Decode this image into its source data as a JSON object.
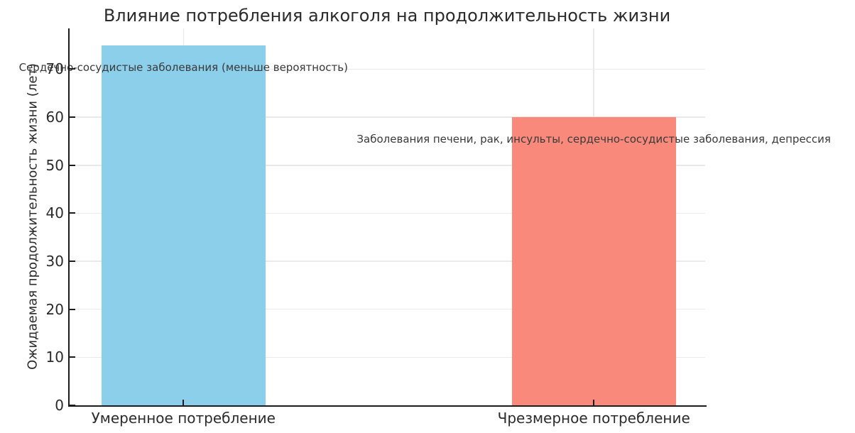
{
  "chart_data": {
    "type": "bar",
    "title": "Влияние потребления алкоголя на продолжительность жизни",
    "xlabel": "",
    "ylabel": "Ожидаемая продолжительность жизни (лет)",
    "categories": [
      "Умеренное потребление",
      "Чрезмерное потребление"
    ],
    "values": [
      75,
      60
    ],
    "bar_colors": [
      "#8BCFEB",
      "#F9897B"
    ],
    "ylim": [
      0,
      78.5
    ],
    "yticks": [
      0,
      10,
      20,
      30,
      40,
      50,
      60,
      70
    ],
    "grid": true,
    "legend_position": "none",
    "annotations": [
      {
        "text": "Сердечно-сосудистые заболевания (меньше вероятность)",
        "bar_index": 0
      },
      {
        "text": "Заболевания печени, рак, инсульты, сердечно-сосудистые заболевания, депрессия",
        "bar_index": 1
      }
    ]
  }
}
